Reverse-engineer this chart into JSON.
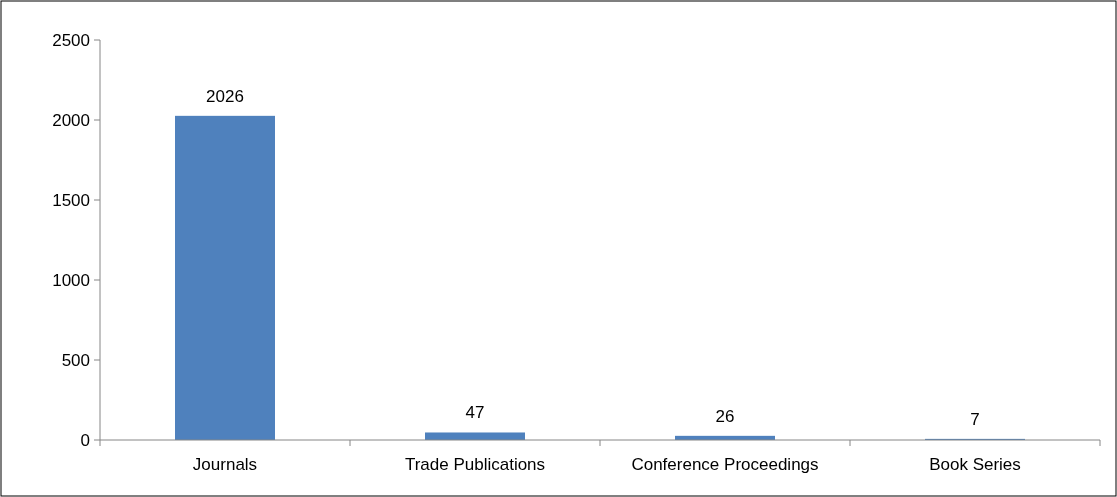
{
  "chart_data": {
    "type": "bar",
    "categories": [
      "Journals",
      "Trade Publications",
      "Conference Proceedings",
      "Book Series"
    ],
    "values": [
      2026,
      47,
      26,
      7
    ],
    "color": "#4f81bd",
    "ylim": [
      0,
      2500
    ],
    "yticks": [
      0,
      500,
      1000,
      1500,
      2000,
      2500
    ],
    "grid": false,
    "data_labels": true
  }
}
